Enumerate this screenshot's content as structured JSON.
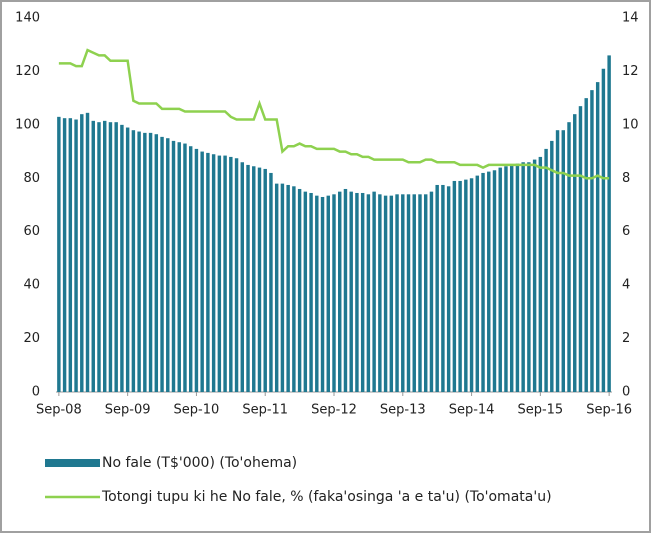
{
  "chart_data": {
    "type": "bar",
    "categories": [
      "Sep-08",
      null,
      null,
      null,
      null,
      null,
      null,
      null,
      null,
      null,
      null,
      null,
      "Sep-09",
      null,
      null,
      null,
      null,
      null,
      null,
      null,
      null,
      null,
      null,
      null,
      "Sep-10",
      null,
      null,
      null,
      null,
      null,
      null,
      null,
      null,
      null,
      null,
      null,
      "Sep-11",
      null,
      null,
      null,
      null,
      null,
      null,
      null,
      null,
      null,
      null,
      null,
      "Sep-12",
      null,
      null,
      null,
      null,
      null,
      null,
      null,
      null,
      null,
      null,
      null,
      "Sep-13",
      null,
      null,
      null,
      null,
      null,
      null,
      null,
      null,
      null,
      null,
      null,
      "Sep-14",
      null,
      null,
      null,
      null,
      null,
      null,
      null,
      null,
      null,
      null,
      null,
      "Sep-15",
      null,
      null,
      null,
      null,
      null,
      null,
      null,
      null,
      null,
      null,
      null,
      "Sep-16"
    ],
    "series": [
      {
        "name": "No fale (T$'000) (To'ohema)",
        "type": "bar",
        "color": "#1f7890",
        "values": [
          103,
          102.5,
          102.5,
          102,
          104,
          104.5,
          101.5,
          101,
          101.5,
          101,
          101,
          100,
          99,
          98,
          97.5,
          97,
          97,
          96.5,
          95.5,
          95,
          94,
          93.5,
          93,
          92,
          91,
          90,
          89.5,
          89,
          88.5,
          88.5,
          88,
          87.5,
          86,
          85,
          84.5,
          84,
          83.5,
          82,
          78,
          78,
          77.5,
          77,
          76,
          75,
          74.5,
          73.5,
          73,
          73.5,
          74,
          75,
          76,
          75,
          74.5,
          74.5,
          74,
          75,
          74,
          73.5,
          73.5,
          74,
          74,
          74,
          74,
          74,
          74,
          75,
          77.5,
          77.5,
          77,
          79,
          79,
          79.5,
          80,
          81,
          82,
          82.5,
          83,
          84,
          84.5,
          85,
          85.5,
          86,
          86,
          87,
          88,
          91,
          94,
          98,
          98,
          101,
          104,
          107,
          110,
          113,
          116,
          121,
          126
        ]
      },
      {
        "name": "Totongi tupu ki he No fale, % (faka'osinga 'a e ta'u) (To'omata'u)",
        "type": "line",
        "axis": "y2",
        "color": "#8ed14f",
        "values": [
          12.3,
          12.3,
          12.3,
          12.2,
          12.2,
          12.8,
          12.7,
          12.6,
          12.6,
          12.4,
          12.4,
          12.4,
          12.4,
          10.9,
          10.8,
          10.8,
          10.8,
          10.8,
          10.6,
          10.6,
          10.6,
          10.6,
          10.5,
          10.5,
          10.5,
          10.5,
          10.5,
          10.5,
          10.5,
          10.5,
          10.3,
          10.2,
          10.2,
          10.2,
          10.2,
          10.8,
          10.2,
          10.2,
          10.2,
          9.0,
          9.2,
          9.2,
          9.3,
          9.2,
          9.2,
          9.1,
          9.1,
          9.1,
          9.1,
          9.0,
          9.0,
          8.9,
          8.9,
          8.8,
          8.8,
          8.7,
          8.7,
          8.7,
          8.7,
          8.7,
          8.7,
          8.6,
          8.6,
          8.6,
          8.7,
          8.7,
          8.6,
          8.6,
          8.6,
          8.6,
          8.5,
          8.5,
          8.5,
          8.5,
          8.4,
          8.5,
          8.5,
          8.5,
          8.5,
          8.5,
          8.5,
          8.5,
          8.5,
          8.5,
          8.4,
          8.4,
          8.3,
          8.2,
          8.2,
          8.1,
          8.1,
          8.1,
          8.0,
          8.0,
          8.1,
          8.0,
          8.0
        ]
      }
    ],
    "ylim": [
      0,
      140
    ],
    "yticks": [
      0,
      20,
      40,
      60,
      80,
      100,
      120,
      140
    ],
    "y2lim": [
      0,
      14
    ],
    "y2ticks": [
      0,
      2,
      4,
      6,
      8,
      10,
      12,
      14
    ]
  }
}
